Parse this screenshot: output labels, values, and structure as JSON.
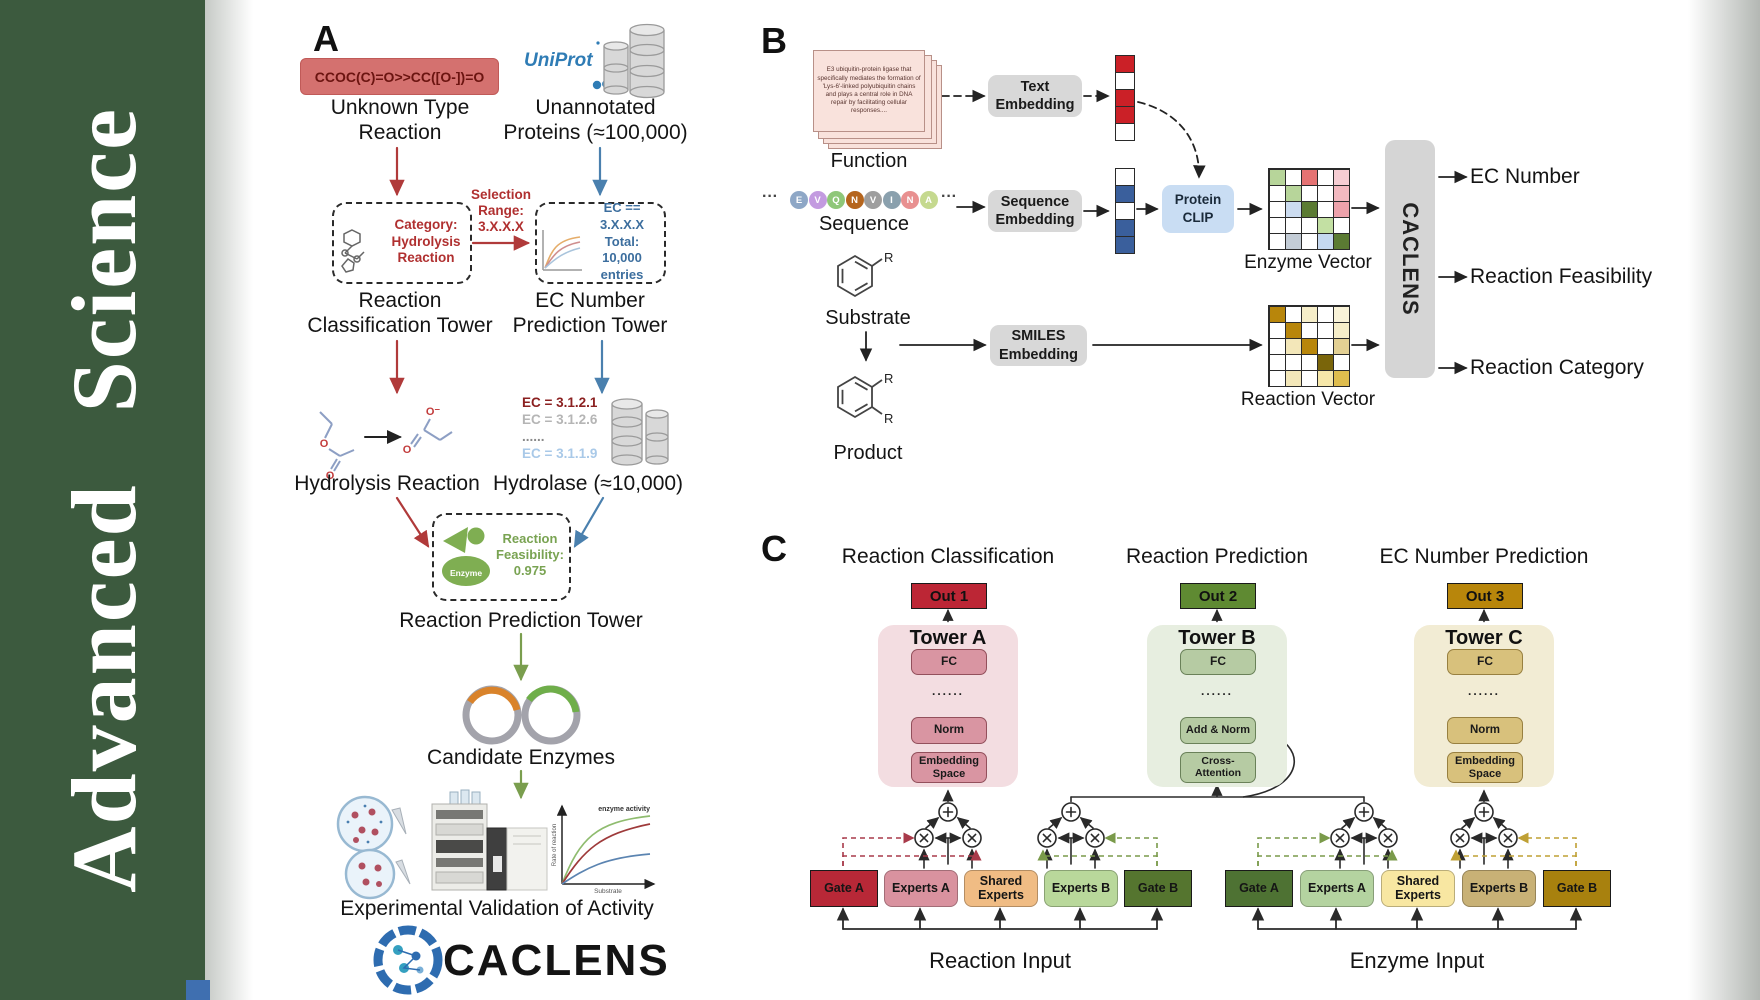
{
  "journal": {
    "title": "Advanced Science"
  },
  "colors": {
    "sidebar_green": "#3c5a3e",
    "arrow_red": "#b03a3a",
    "arrow_blue": "#4a80ae",
    "arrow_green": "#7a9e4e",
    "uniprot_blue": "#2f7cb5",
    "gate_red": "#b82837",
    "gate_green_dark": "#55752f",
    "gate_olive": "#4e7233",
    "gate_gold": "#a8810e"
  },
  "panelA": {
    "label": "A",
    "smiles_box": "CCOC(C)=O>>CC([O-])=O",
    "unknown_label": "Unknown Type\nReaction",
    "uniprot_text": "UniProt",
    "unannotated_label": "Unannotated\nProteins (≈100,000)",
    "category_box": "Category:\nHydrolysis\nReaction",
    "selection_label": "Selection\nRange:\n3.X.X.X",
    "ec_range_box": "EC == 3.X.X.X\nTotal: 10,000\nentries",
    "tower1_label": "Reaction\nClassification Tower",
    "tower2_label": "EC Number\nPrediction Tower",
    "hydrolysis_label": "Hydrolysis Reaction",
    "ec_results": [
      {
        "text": "EC = 3.1.2.1",
        "color": "#8b2020",
        "weight": 700
      },
      {
        "text": "EC = 3.1.2.6",
        "color": "#b5b5b5",
        "weight": 600
      },
      {
        "text": "......",
        "color": "#8a8a8a",
        "weight": 700
      },
      {
        "text": "EC = 3.1.1.9",
        "color": "#a9c9e8",
        "weight": 600
      }
    ],
    "hydrolase_label": "Hydrolase (≈10,000)",
    "feasibility_box": "Reaction\nFeasibility:\n0.975",
    "enzyme_badge": "Enzyme",
    "tower3_label": "Reaction Prediction Tower",
    "candidate_label": "Candidate Enzymes",
    "activity_plot": {
      "curve_label": "enzyme activity",
      "xlabel": "Substrate",
      "ylabel": "Rate of reaction"
    },
    "validation_label": "Experimental Validation of Activity",
    "brand": "CACLENS",
    "atoms": {
      "ester_o": "O",
      "ester_o2": "O",
      "acetate_o_minus": "O⁻",
      "acetate_o": "O"
    }
  },
  "panelB": {
    "label": "B",
    "function_card": "E3 ubiquitin-protein ligase that specifically mediates the formation of 'Lys-6'-linked polyubiquitin chains and plays a central role in DNA repair by facilitating cellular responses....",
    "function_label": "Function",
    "ellipsis": "···",
    "residues": [
      {
        "letter": "E",
        "color": "#8ea7c6"
      },
      {
        "letter": "V",
        "color": "#c39be0"
      },
      {
        "letter": "Q",
        "color": "#8fc779"
      },
      {
        "letter": "N",
        "color": "#b5651d"
      },
      {
        "letter": "V",
        "color": "#9e9e9e"
      },
      {
        "letter": "I",
        "color": "#8aa0ad"
      },
      {
        "letter": "N",
        "color": "#e89090"
      },
      {
        "letter": "A",
        "color": "#c5d98f"
      }
    ],
    "sequence_label": "Sequence",
    "substrate_label": "Substrate",
    "product_label": "Product",
    "r_group": "R",
    "text_embedding": "Text\nEmbedding",
    "sequence_embedding": "Sequence\nEmbedding",
    "smiles_embedding": "SMILES\nEmbedding",
    "protein_clip": "Protein\nCLIP",
    "caclens": "CACLENS",
    "text_vector": [
      "#cb2027",
      "#ffffff",
      "#cb2027",
      "#cb2027",
      "#ffffff"
    ],
    "sequence_vector": [
      "#ffffff",
      "#3a5f9c",
      "#ffffff",
      "#3a5f9c",
      "#3a5f9c"
    ],
    "enzyme_matrix": {
      "label": "Enzyme Vector",
      "cells": [
        [
          "#b7d59a",
          "#ffffff",
          "#e57373",
          "#ffffff",
          "#f6cdd3"
        ],
        [
          "#ffffff",
          "#b7d59a",
          "#ffffff",
          "#ffffff",
          "#f3b9c0"
        ],
        [
          "#ffffff",
          "#ccdcf0",
          "#5b7b33",
          "#ffffff",
          "#eda2ab"
        ],
        [
          "#ffffff",
          "#ffffff",
          "#ffffff",
          "#c3e0a3",
          "#ffffff"
        ],
        [
          "#ffffff",
          "#c3ccd6",
          "#ffffff",
          "#c5d8f0",
          "#5b7b33"
        ]
      ]
    },
    "reaction_matrix": {
      "label": "Reaction Vector",
      "cells": [
        [
          "#b8860b",
          "#ffffff",
          "#f6eec9",
          "#ffffff",
          "#f9f3d8"
        ],
        [
          "#ffffff",
          "#b8860b",
          "#ffffff",
          "#ffffff",
          "#f6eec9"
        ],
        [
          "#ffffff",
          "#f3e7b9",
          "#b8860b",
          "#ffffff",
          "#e3d093"
        ],
        [
          "#ffffff",
          "#ffffff",
          "#ffffff",
          "#7a650a",
          "#ffffff"
        ],
        [
          "#ffffff",
          "#f3e7b9",
          "#ffffff",
          "#f6e7a9",
          "#dfbd4e"
        ]
      ]
    },
    "outputs": [
      "EC Number",
      "Reaction Feasibility",
      "Reaction Category"
    ]
  },
  "panelC": {
    "label": "C",
    "towers": [
      {
        "title": "Reaction Classification",
        "out": "Out 1",
        "out_bg": "#bc2635",
        "name": "Tower A",
        "fc": "FC",
        "dots": "......",
        "mid": "Norm",
        "base": "Embedding\nSpace"
      },
      {
        "title": "Reaction Prediction",
        "out": "Out 2",
        "out_bg": "#5f8a32",
        "name": "Tower B",
        "fc": "FC",
        "dots": "......",
        "mid": "Add & Norm",
        "base": "Cross-\nAttention"
      },
      {
        "title": "EC Number Prediction",
        "out": "Out 3",
        "out_bg": "#b8860b",
        "name": "Tower C",
        "fc": "FC",
        "dots": "......",
        "mid": "Norm",
        "base": "Embedding\nSpace"
      }
    ],
    "moe_groups": [
      {
        "input": "Reaction Input",
        "boxes": [
          {
            "label": "Gate A",
            "bg": "#b82837",
            "gate": true
          },
          {
            "label": "Experts A",
            "bg": "#d9929f",
            "gate": false
          },
          {
            "label": "Shared\nExperts",
            "bg": "#f0bc84",
            "gate": false
          },
          {
            "label": "Experts B",
            "bg": "#b9d89b",
            "gate": false
          },
          {
            "label": "Gate B",
            "bg": "#55752f",
            "gate": true
          }
        ]
      },
      {
        "input": "Enzyme Input",
        "boxes": [
          {
            "label": "Gate A",
            "bg": "#4e7233",
            "gate": true
          },
          {
            "label": "Experts A",
            "bg": "#b4d3a0",
            "gate": false
          },
          {
            "label": "Shared\nExperts",
            "bg": "#f8e7a2",
            "gate": false
          },
          {
            "label": "Experts B",
            "bg": "#c8b176",
            "gate": false
          },
          {
            "label": "Gate B",
            "bg": "#a8810e",
            "gate": true
          }
        ]
      }
    ]
  }
}
